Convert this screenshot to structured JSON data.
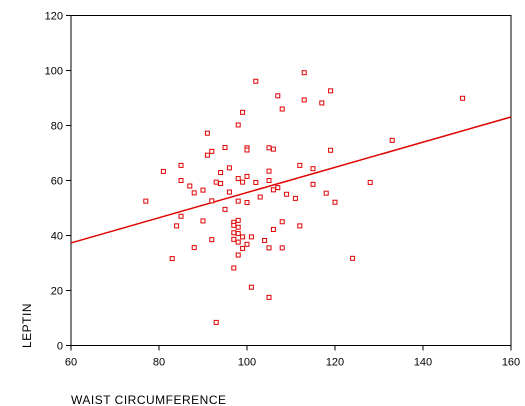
{
  "chart_data": {
    "type": "scatter",
    "title": "",
    "xlabel": "WAIST CIRCUMFERENCE",
    "ylabel": "LEPTIN",
    "xlim": [
      60,
      160
    ],
    "ylim": [
      0,
      120
    ],
    "x_ticks": [
      60,
      80,
      100,
      120,
      140,
      160
    ],
    "y_ticks": [
      0,
      20,
      40,
      60,
      80,
      100,
      120
    ],
    "x_tick_labels": [
      "60",
      "80",
      "100",
      "120",
      "140",
      "160"
    ],
    "y_tick_labels": [
      "0",
      "20",
      "40",
      "60",
      "80",
      "100",
      "120"
    ],
    "grid": false,
    "legend": "none",
    "marker": "open-square",
    "color": "#e00000",
    "points": [
      {
        "x": 77,
        "y": 52.5
      },
      {
        "x": 81,
        "y": 63.3
      },
      {
        "x": 83,
        "y": 31.6
      },
      {
        "x": 84,
        "y": 43.5
      },
      {
        "x": 85,
        "y": 65.5
      },
      {
        "x": 85,
        "y": 60
      },
      {
        "x": 85,
        "y": 47
      },
      {
        "x": 87,
        "y": 58
      },
      {
        "x": 88,
        "y": 55.5
      },
      {
        "x": 88,
        "y": 35.6
      },
      {
        "x": 90,
        "y": 56.5
      },
      {
        "x": 90,
        "y": 45.3
      },
      {
        "x": 91,
        "y": 77.2
      },
      {
        "x": 91,
        "y": 69.2
      },
      {
        "x": 92,
        "y": 70.6
      },
      {
        "x": 92,
        "y": 52.6
      },
      {
        "x": 92,
        "y": 38.5
      },
      {
        "x": 93,
        "y": 59.4
      },
      {
        "x": 93,
        "y": 8.4
      },
      {
        "x": 94,
        "y": 62.9
      },
      {
        "x": 94,
        "y": 58.9
      },
      {
        "x": 95,
        "y": 72
      },
      {
        "x": 95,
        "y": 49.5
      },
      {
        "x": 96,
        "y": 64.6
      },
      {
        "x": 96,
        "y": 55.8
      },
      {
        "x": 97,
        "y": 44.8
      },
      {
        "x": 97,
        "y": 43.7
      },
      {
        "x": 97,
        "y": 41
      },
      {
        "x": 97,
        "y": 38.6
      },
      {
        "x": 97,
        "y": 28.2
      },
      {
        "x": 98,
        "y": 80.2
      },
      {
        "x": 98,
        "y": 60.7
      },
      {
        "x": 98,
        "y": 52.5
      },
      {
        "x": 98,
        "y": 45.5
      },
      {
        "x": 98,
        "y": 43
      },
      {
        "x": 98,
        "y": 40.7
      },
      {
        "x": 98,
        "y": 37.6
      },
      {
        "x": 98,
        "y": 32.9
      },
      {
        "x": 99,
        "y": 84.8
      },
      {
        "x": 99,
        "y": 59.4
      },
      {
        "x": 99,
        "y": 39.5
      },
      {
        "x": 99,
        "y": 35.3
      },
      {
        "x": 100,
        "y": 71.9
      },
      {
        "x": 100,
        "y": 71.1
      },
      {
        "x": 100,
        "y": 61.5
      },
      {
        "x": 100,
        "y": 52
      },
      {
        "x": 100,
        "y": 36.8
      },
      {
        "x": 101,
        "y": 39.5
      },
      {
        "x": 101,
        "y": 21.2
      },
      {
        "x": 102,
        "y": 96.1
      },
      {
        "x": 102,
        "y": 59.3
      },
      {
        "x": 103,
        "y": 54
      },
      {
        "x": 104,
        "y": 38.2
      },
      {
        "x": 105,
        "y": 71.9
      },
      {
        "x": 105,
        "y": 63.4
      },
      {
        "x": 105,
        "y": 60
      },
      {
        "x": 105,
        "y": 35.5
      },
      {
        "x": 105,
        "y": 17.5
      },
      {
        "x": 106,
        "y": 71.4
      },
      {
        "x": 106,
        "y": 56.6
      },
      {
        "x": 106,
        "y": 42.2
      },
      {
        "x": 107,
        "y": 90.8
      },
      {
        "x": 107,
        "y": 57.4
      },
      {
        "x": 108,
        "y": 86
      },
      {
        "x": 108,
        "y": 45
      },
      {
        "x": 108,
        "y": 35.5
      },
      {
        "x": 109,
        "y": 55
      },
      {
        "x": 111,
        "y": 53.5
      },
      {
        "x": 112,
        "y": 65.5
      },
      {
        "x": 112,
        "y": 43.5
      },
      {
        "x": 113,
        "y": 99.2
      },
      {
        "x": 113,
        "y": 89.3
      },
      {
        "x": 115,
        "y": 64.3
      },
      {
        "x": 115,
        "y": 58.6
      },
      {
        "x": 117,
        "y": 88.2
      },
      {
        "x": 118,
        "y": 55.4
      },
      {
        "x": 119,
        "y": 92.6
      },
      {
        "x": 119,
        "y": 71
      },
      {
        "x": 120,
        "y": 52.1
      },
      {
        "x": 124,
        "y": 31.7
      },
      {
        "x": 128,
        "y": 59.3
      },
      {
        "x": 133,
        "y": 74.6
      },
      {
        "x": 149,
        "y": 89.9
      }
    ],
    "fit_line": {
      "type": "linear",
      "x": [
        60,
        160
      ],
      "y": [
        37.3,
        83.1
      ]
    }
  }
}
